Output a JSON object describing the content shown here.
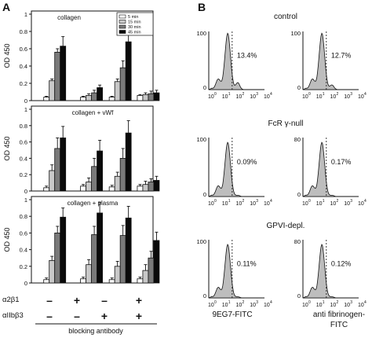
{
  "panel_a_label": "A",
  "panel_b_label": "B",
  "chart_data": [
    {
      "type": "bar",
      "panel_title": "collagen",
      "ylabel": "OD 450",
      "ylim": [
        0,
        1
      ],
      "yticks": [
        "0",
        "0.2",
        "0.4",
        "0.6",
        "0.8",
        "1"
      ],
      "legend": [
        "5 min",
        "15 min",
        "30 min",
        "45 min"
      ],
      "legend_position": "top-right",
      "series_colors": [
        "#ffffff",
        "#c8c8c8",
        "#7a7a7a",
        "#0a0a0a"
      ],
      "series": [
        {
          "values": [
            0.04,
            0.04,
            0.04,
            0.06
          ],
          "errors": [
            0.01,
            0.01,
            0.01,
            0.01
          ]
        },
        {
          "values": [
            0.23,
            0.06,
            0.22,
            0.07
          ],
          "errors": [
            0.02,
            0.02,
            0.03,
            0.02
          ]
        },
        {
          "values": [
            0.56,
            0.09,
            0.38,
            0.08
          ],
          "errors": [
            0.04,
            0.03,
            0.08,
            0.03
          ]
        },
        {
          "values": [
            0.63,
            0.15,
            0.68,
            0.09
          ],
          "errors": [
            0.11,
            0.03,
            0.09,
            0.03
          ]
        }
      ]
    },
    {
      "type": "bar",
      "panel_title": "collagen + vWf",
      "ylabel": "OD 450",
      "ylim": [
        0,
        1
      ],
      "yticks": [
        "0",
        "0.2",
        "0.4",
        "0.6",
        "0.8",
        "1"
      ],
      "series_colors": [
        "#ffffff",
        "#c8c8c8",
        "#7a7a7a",
        "#0a0a0a"
      ],
      "series": [
        {
          "values": [
            0.04,
            0.06,
            0.05,
            0.06
          ],
          "errors": [
            0.02,
            0.02,
            0.02,
            0.02
          ]
        },
        {
          "values": [
            0.25,
            0.11,
            0.18,
            0.08
          ],
          "errors": [
            0.07,
            0.05,
            0.05,
            0.04
          ]
        },
        {
          "values": [
            0.52,
            0.3,
            0.4,
            0.11
          ],
          "errors": [
            0.13,
            0.1,
            0.12,
            0.04
          ]
        },
        {
          "values": [
            0.65,
            0.49,
            0.71,
            0.13
          ],
          "errors": [
            0.14,
            0.13,
            0.15,
            0.05
          ]
        }
      ]
    },
    {
      "type": "bar",
      "panel_title": "collagen + plasma",
      "ylabel": "OD 450",
      "ylim": [
        0,
        1
      ],
      "yticks": [
        "0",
        "0.2",
        "0.4",
        "0.6",
        "0.8",
        "1"
      ],
      "series_colors": [
        "#ffffff",
        "#c8c8c8",
        "#7a7a7a",
        "#0a0a0a"
      ],
      "series": [
        {
          "values": [
            0.04,
            0.05,
            0.04,
            0.05
          ],
          "errors": [
            0.02,
            0.02,
            0.02,
            0.02
          ]
        },
        {
          "values": [
            0.27,
            0.22,
            0.2,
            0.15
          ],
          "errors": [
            0.05,
            0.06,
            0.06,
            0.07
          ]
        },
        {
          "values": [
            0.6,
            0.58,
            0.57,
            0.3
          ],
          "errors": [
            0.08,
            0.1,
            0.12,
            0.08
          ]
        },
        {
          "values": [
            0.79,
            0.84,
            0.78,
            0.51
          ],
          "errors": [
            0.11,
            0.13,
            0.14,
            0.1
          ]
        }
      ]
    }
  ],
  "x_markers": {
    "row1_label": "α2β1",
    "row1": [
      "–",
      "+",
      "–",
      "+"
    ],
    "row2_label": "αIIbβ3",
    "row2": [
      "–",
      "–",
      "+",
      "+"
    ],
    "axis_label": "blocking antibody"
  },
  "histograms": {
    "rows": [
      "control",
      "FcR γ-null",
      "GPVI-depl."
    ],
    "left_ymax": [
      "100",
      "100",
      "100"
    ],
    "right_ymax": [
      "100",
      "80",
      "80"
    ],
    "percentages": [
      [
        "13.4%",
        "12.7%"
      ],
      [
        "0.09%",
        "0.17%"
      ],
      [
        "0.11%",
        "0.12%"
      ]
    ],
    "xticks": [
      "10",
      "10",
      "10",
      "10",
      "10"
    ],
    "xtick_exps": [
      "0",
      "1",
      "2",
      "3",
      "4"
    ],
    "xlabel_left": "9EG7-FITC",
    "xlabel_right_1": "anti fibrinogen-",
    "xlabel_right_2": "FITC"
  }
}
